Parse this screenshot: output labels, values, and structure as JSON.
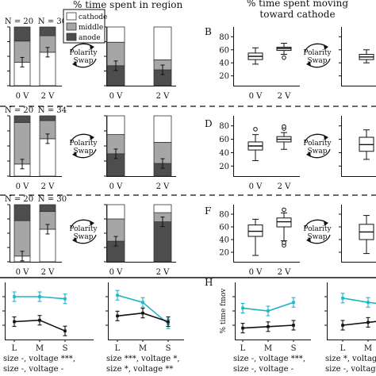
{
  "header": {
    "left_title": "% time spent in region",
    "right_title_line1": "% time spent moving",
    "right_title_line2": "toward cathode"
  },
  "panel_letters": [
    "B",
    "D",
    "F",
    "H"
  ],
  "swap_label": {
    "line1": "Polarity",
    "line2": "Swap"
  },
  "legend": [
    "cathode",
    "middle",
    "anode"
  ],
  "colors": {
    "cathode": "#ffffff",
    "middle": "#a6a6a6",
    "anode": "#4d4d4d",
    "cyan": "#1fb5c5",
    "black": "#111111"
  },
  "chart_data": [
    {
      "type": "bar",
      "stacked": true,
      "row": 0,
      "categories": [
        "0 V",
        "2 V"
      ],
      "n_labels": [
        "N = 20",
        "N = 30"
      ],
      "series": [
        {
          "name": "cathode",
          "values": [
            40,
            57
          ]
        },
        {
          "name": "middle",
          "values": [
            36,
            28
          ]
        },
        {
          "name": "anode",
          "values": [
            24,
            15
          ]
        }
      ],
      "ylim": [
        0,
        100
      ]
    },
    {
      "type": "bar",
      "stacked": true,
      "row": 0,
      "categories": [
        "0 V",
        "2 V"
      ],
      "series": [
        {
          "name": "anode",
          "values": [
            34,
            27
          ]
        },
        {
          "name": "middle",
          "values": [
            40,
            17
          ]
        },
        {
          "name": "cathode",
          "values": [
            26,
            56
          ]
        }
      ],
      "ylim": [
        0,
        100
      ]
    },
    {
      "type": "box",
      "row": 0,
      "categories": [
        "0 V",
        "2 V"
      ],
      "boxes": [
        {
          "min": 38,
          "q1": 45,
          "median": 50,
          "q3": 55,
          "max": 63,
          "outliers": []
        },
        {
          "min": 53,
          "q1": 59,
          "median": 62,
          "q3": 64,
          "max": 70,
          "outliers": [
            48
          ]
        }
      ],
      "yticks": [
        20,
        40,
        60,
        80
      ],
      "ylim": [
        5,
        95
      ]
    },
    {
      "type": "box",
      "row": 0,
      "categories": [
        "0 V"
      ],
      "boxes": [
        {
          "min": 40,
          "q1": 45,
          "median": 49,
          "q3": 53,
          "max": 60,
          "outliers": []
        }
      ],
      "ylim": [
        5,
        95
      ]
    },
    {
      "type": "bar",
      "stacked": true,
      "row": 1,
      "categories": [
        "0 V",
        "2 V"
      ],
      "n_labels": [
        "N = 20",
        "N = 34"
      ],
      "series": [
        {
          "name": "cathode",
          "values": [
            20,
            62
          ]
        },
        {
          "name": "middle",
          "values": [
            69,
            30
          ]
        },
        {
          "name": "anode",
          "values": [
            11,
            8
          ]
        }
      ],
      "ylim": [
        0,
        100
      ]
    },
    {
      "type": "bar",
      "stacked": true,
      "row": 1,
      "categories": [
        "0 V",
        "2 V"
      ],
      "series": [
        {
          "name": "anode",
          "values": [
            37,
            21
          ]
        },
        {
          "name": "middle",
          "values": [
            32,
            35
          ]
        },
        {
          "name": "cathode",
          "values": [
            31,
            44
          ]
        }
      ],
      "ylim": [
        0,
        100
      ]
    },
    {
      "type": "box",
      "row": 1,
      "categories": [
        "0 V",
        "2 V"
      ],
      "boxes": [
        {
          "min": 28,
          "q1": 44,
          "median": 50,
          "q3": 56,
          "max": 67,
          "outliers": [
            75
          ]
        },
        {
          "min": 45,
          "q1": 56,
          "median": 60,
          "q3": 64,
          "max": 70,
          "outliers": [
            76,
            79
          ]
        }
      ],
      "yticks": [
        20,
        40,
        60,
        80
      ],
      "ylim": [
        5,
        95
      ]
    },
    {
      "type": "box",
      "row": 1,
      "categories": [
        "0 V"
      ],
      "boxes": [
        {
          "min": 30,
          "q1": 42,
          "median": 52,
          "q3": 63,
          "max": 74,
          "outliers": []
        }
      ],
      "ylim": [
        5,
        95
      ]
    },
    {
      "type": "bar",
      "stacked": true,
      "row": 2,
      "categories": [
        "0 V",
        "2 V"
      ],
      "n_labels": [
        "N = 20",
        "N = 30"
      ],
      "series": [
        {
          "name": "cathode",
          "values": [
            10,
            57
          ]
        },
        {
          "name": "middle",
          "values": [
            62,
            31
          ]
        },
        {
          "name": "anode",
          "values": [
            28,
            12
          ]
        }
      ],
      "ylim": [
        0,
        100
      ]
    },
    {
      "type": "bar",
      "stacked": true,
      "row": 2,
      "categories": [
        "0 V",
        "2 V"
      ],
      "series": [
        {
          "name": "anode",
          "values": [
            36,
            70
          ]
        },
        {
          "name": "middle",
          "values": [
            39,
            16
          ]
        },
        {
          "name": "cathode",
          "values": [
            25,
            14
          ]
        }
      ],
      "ylim": [
        0,
        100
      ]
    },
    {
      "type": "box",
      "row": 2,
      "categories": [
        "0 V",
        "2 V"
      ],
      "boxes": [
        {
          "min": 15,
          "q1": 45,
          "median": 53,
          "q3": 63,
          "max": 72,
          "outliers": []
        },
        {
          "min": 38,
          "q1": 60,
          "median": 68,
          "q3": 74,
          "max": 82,
          "outliers": [
            31,
            35,
            87
          ]
        }
      ],
      "yticks": [
        20,
        40,
        60,
        80
      ],
      "ylim": [
        5,
        95
      ]
    },
    {
      "type": "box",
      "row": 2,
      "categories": [
        "0 V"
      ],
      "boxes": [
        {
          "min": 18,
          "q1": 40,
          "median": 52,
          "q3": 64,
          "max": 78,
          "outliers": []
        }
      ],
      "ylim": [
        5,
        95
      ]
    },
    {
      "type": "line",
      "row": 3,
      "categories": [
        "L",
        "M",
        "S"
      ],
      "series": [
        {
          "values": [
            80,
            80,
            77
          ]
        },
        {
          "values": [
            45,
            47,
            32
          ]
        }
      ],
      "ylim": [
        20,
        100
      ],
      "stats_lines": [
        "size -, voltage ***,",
        "size -, voltage -"
      ]
    },
    {
      "type": "line",
      "row": 3,
      "categories": [
        "L",
        "M",
        "S"
      ],
      "series": [
        {
          "values": [
            82,
            72,
            42
          ]
        },
        {
          "values": [
            53,
            57,
            45
          ]
        }
      ],
      "ylim": [
        20,
        100
      ],
      "stats_lines": [
        "size ***, voltage *,",
        "size *, voltage **"
      ]
    },
    {
      "type": "line",
      "row": 3,
      "categories": [
        "L",
        "M",
        "S"
      ],
      "series": [
        {
          "values": [
            62,
            60,
            66
          ]
        },
        {
          "values": [
            48,
            49,
            50
          ]
        }
      ],
      "ylim": [
        40,
        80
      ],
      "ylabel": "% time fmov",
      "stats_lines": [
        "size -, voltage ***,",
        "size -, voltage -"
      ]
    },
    {
      "type": "line",
      "row": 3,
      "categories": [
        "L",
        "M",
        "S"
      ],
      "series": [
        {
          "values": [
            69,
            66,
            64
          ]
        },
        {
          "values": [
            50,
            52,
            54
          ]
        }
      ],
      "ylim": [
        40,
        80
      ],
      "stats_lines": [
        "size *, voltage ***,",
        "size -, voltage *"
      ]
    }
  ]
}
